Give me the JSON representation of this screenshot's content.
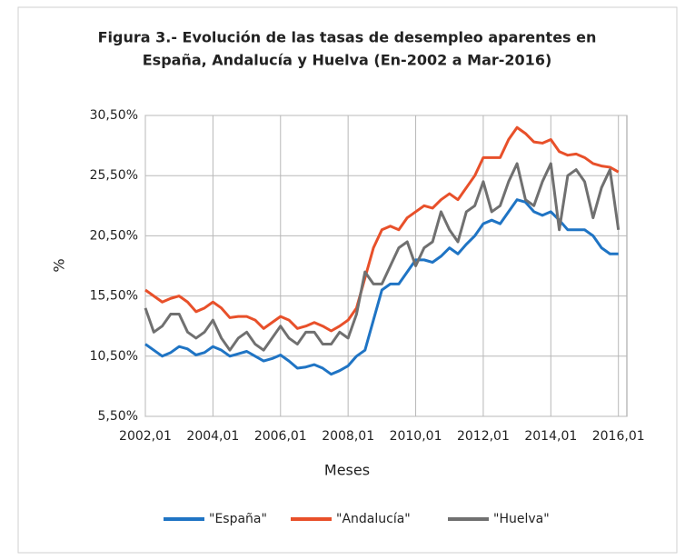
{
  "chart_data": {
    "type": "line",
    "title": [
      "Figura 3.- Evolución de las tasas de desempleo aparentes en",
      "España, Andalucía y Huelva (En-2002 a Mar-2016)"
    ],
    "xlabel": "Meses",
    "ylabel": "%",
    "x": [
      2002,
      2002.25,
      2002.5,
      2002.75,
      2003,
      2003.25,
      2003.5,
      2003.75,
      2004,
      2004.25,
      2004.5,
      2004.75,
      2005,
      2005.25,
      2005.5,
      2005.75,
      2006,
      2006.25,
      2006.5,
      2006.75,
      2007,
      2007.25,
      2007.5,
      2007.75,
      2008,
      2008.25,
      2008.5,
      2008.75,
      2009,
      2009.25,
      2009.5,
      2009.75,
      2010,
      2010.25,
      2010.5,
      2010.75,
      2011,
      2011.25,
      2011.5,
      2011.75,
      2012,
      2012.25,
      2012.5,
      2012.75,
      2013,
      2013.25,
      2013.5,
      2013.75,
      2014,
      2014.25,
      2014.5,
      2014.75,
      2015,
      2015.25,
      2015.5,
      2015.75,
      2016
    ],
    "series": [
      {
        "name": "\"España\"",
        "color": "#1f74c4",
        "values": [
          11.5,
          11.0,
          10.5,
          10.8,
          11.3,
          11.1,
          10.6,
          10.8,
          11.3,
          11.0,
          10.5,
          10.7,
          10.9,
          10.5,
          10.1,
          10.3,
          10.6,
          10.1,
          9.5,
          9.6,
          9.8,
          9.5,
          9.0,
          9.3,
          9.7,
          10.5,
          11.0,
          13.5,
          16.0,
          16.5,
          16.5,
          17.5,
          18.5,
          18.5,
          18.3,
          18.8,
          19.5,
          19.0,
          19.8,
          20.5,
          21.5,
          21.8,
          21.5,
          22.5,
          23.5,
          23.3,
          22.5,
          22.2,
          22.5,
          21.8,
          21.0,
          21.0,
          21.0,
          20.5,
          19.5,
          19.0,
          19.0
        ]
      },
      {
        "name": "\"Andalucía\"",
        "color": "#e8502a",
        "values": [
          16.0,
          15.5,
          15.0,
          15.3,
          15.5,
          15.0,
          14.2,
          14.5,
          15.0,
          14.5,
          13.7,
          13.8,
          13.8,
          13.5,
          12.8,
          13.3,
          13.8,
          13.5,
          12.8,
          13.0,
          13.3,
          13.0,
          12.6,
          13.0,
          13.5,
          14.5,
          17.0,
          19.5,
          21.0,
          21.3,
          21.0,
          22.0,
          22.5,
          23.0,
          22.8,
          23.5,
          24.0,
          23.5,
          24.5,
          25.5,
          27.0,
          27.0,
          27.0,
          28.5,
          29.5,
          29.0,
          28.3,
          28.2,
          28.5,
          27.5,
          27.2,
          27.3,
          27.0,
          26.5,
          26.3,
          26.2,
          25.8
        ]
      },
      {
        "name": "\"Huelva\"",
        "color": "#707070",
        "values": [
          14.5,
          12.5,
          13.0,
          14.0,
          14.0,
          12.5,
          12.0,
          12.5,
          13.5,
          12.0,
          11.0,
          12.0,
          12.5,
          11.5,
          11.0,
          12.0,
          13.0,
          12.0,
          11.5,
          12.5,
          12.5,
          11.5,
          11.5,
          12.5,
          12.0,
          14.0,
          17.5,
          16.5,
          16.5,
          18.0,
          19.5,
          20.0,
          18.0,
          19.5,
          20.0,
          22.5,
          21.0,
          20.0,
          22.5,
          23.0,
          25.0,
          22.5,
          23.0,
          25.0,
          26.5,
          23.5,
          23.0,
          25.0,
          26.5,
          21.0,
          25.5,
          26.0,
          25.0,
          22.0,
          24.5,
          26.0,
          21.0
        ]
      }
    ],
    "xlim": [
      2002,
      2016.25
    ],
    "xticks": [
      {
        "value": 2002,
        "label": "2002,01"
      },
      {
        "value": 2004,
        "label": "2004,01"
      },
      {
        "value": 2006,
        "label": "2006,01"
      },
      {
        "value": 2008,
        "label": "2008,01"
      },
      {
        "value": 2010,
        "label": "2010,01"
      },
      {
        "value": 2012,
        "label": "2012,01"
      },
      {
        "value": 2014,
        "label": "2014,01"
      },
      {
        "value": 2016,
        "label": "2016,01"
      }
    ],
    "ylim": [
      5.5,
      30.5
    ],
    "yticks": [
      {
        "value": 5.5,
        "label": "5,50%"
      },
      {
        "value": 10.5,
        "label": "10,50%"
      },
      {
        "value": 15.5,
        "label": "15,50%"
      },
      {
        "value": 20.5,
        "label": "20,50%"
      },
      {
        "value": 25.5,
        "label": "25,50%"
      },
      {
        "value": 30.5,
        "label": "30,50%"
      }
    ],
    "grid": true,
    "legend": "bottom"
  }
}
